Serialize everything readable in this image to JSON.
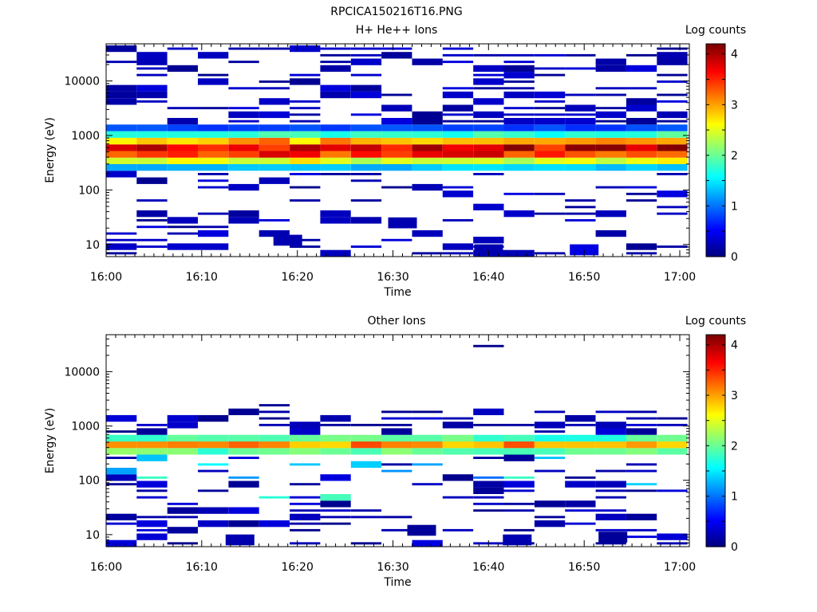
{
  "figure_title": "RPCICA150216T16.PNG",
  "chart_data": [
    {
      "type": "heatmap",
      "title": "H+ He++ Ions",
      "xlabel": "Time",
      "ylabel": "Energy (eV)",
      "x_range": [
        "16:00",
        "17:01"
      ],
      "y_range": [
        6,
        48000
      ],
      "y_scale": "log",
      "x_ticks": [
        "16:00",
        "16:10",
        "16:20",
        "16:30",
        "16:40",
        "16:50",
        "17:00"
      ],
      "y_ticks": [
        "10",
        "100",
        "1000",
        "10000"
      ],
      "colorbar": {
        "label": "Log counts",
        "range": [
          0,
          4.2
        ],
        "ticks": [
          "0",
          "1",
          "2",
          "3",
          "4"
        ]
      },
      "time_bins": 19,
      "sweep_minutes": 3.2,
      "core_energy_range_eV": [
        200,
        1300
      ],
      "core_peak_log_counts": 4.1,
      "low_energy_patches": [
        {
          "time": "16:19",
          "energy_eV": 12,
          "log_counts": 0.2
        },
        {
          "time": "16:31",
          "energy_eV": 25,
          "log_counts": 0.2
        },
        {
          "time": "16:40",
          "energy_eV": 8,
          "log_counts": 0.2
        },
        {
          "time": "16:50",
          "energy_eV": 8,
          "log_counts": 0.4
        }
      ]
    },
    {
      "type": "heatmap",
      "title": "Other Ions",
      "xlabel": "Time",
      "ylabel": "Energy (eV)",
      "x_range": [
        "16:00",
        "17:01"
      ],
      "y_range": [
        6,
        48000
      ],
      "y_scale": "log",
      "x_ticks": [
        "16:00",
        "16:10",
        "16:20",
        "16:30",
        "16:40",
        "16:50",
        "17:00"
      ],
      "y_ticks": [
        "10",
        "100",
        "1000",
        "10000"
      ],
      "colorbar": {
        "label": "Log counts",
        "range": [
          0,
          4.2
        ],
        "ticks": [
          "0",
          "1",
          "2",
          "3",
          "4"
        ]
      },
      "time_bins": 19,
      "sweep_minutes": 3.2,
      "core_energy_range_eV": [
        250,
        700
      ],
      "core_peak_log_counts": 3.3,
      "low_energy_patches": [
        {
          "time": "16:14",
          "energy_eV": 8,
          "log_counts": 0.2
        },
        {
          "time": "16:33",
          "energy_eV": 12,
          "log_counts": 0.1
        },
        {
          "time": "16:43",
          "energy_eV": 8,
          "log_counts": 0.2
        },
        {
          "time": "16:53",
          "energy_eV": 9,
          "log_counts": 0.1
        }
      ]
    }
  ]
}
